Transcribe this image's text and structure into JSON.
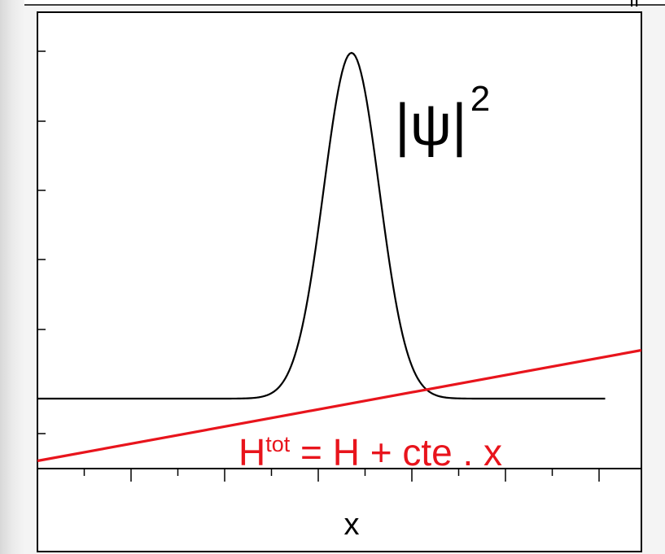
{
  "chart_data": {
    "type": "line",
    "xlabel": "x",
    "ylabel": "",
    "grid": false,
    "series": [
      {
        "name": "|ψ|²",
        "color": "#000000",
        "kind": "gaussian",
        "baseline": 0.0,
        "amplitude": 1.0,
        "center": 0.52,
        "sigma": 0.046,
        "x_range": [
          0.0,
          0.94
        ]
      },
      {
        "name": "Htot = H + cte . x",
        "color": "#e8141c",
        "kind": "linear",
        "points": [
          [
            0.0,
            -0.18
          ],
          [
            1.0,
            0.14
          ]
        ]
      }
    ],
    "annotations": {
      "psi_label": {
        "base": "|ψ|",
        "sup": "2"
      },
      "h_label": {
        "base": "H",
        "sup": "tot",
        "rest": " = H + cte . x"
      }
    },
    "top_right_fragment": "II"
  }
}
